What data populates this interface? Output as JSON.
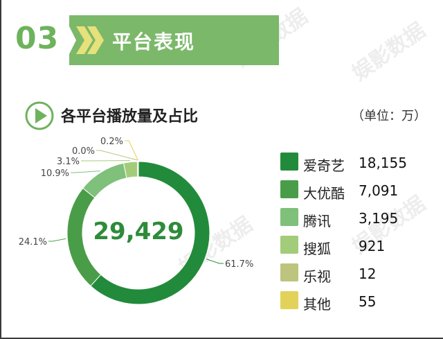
{
  "header": {
    "section_number": "03",
    "section_title": "平台表现"
  },
  "chart_title": "各平台播放量及占比",
  "unit_label": "（单位：万）",
  "center_total": "29,429",
  "watermark": "娱影数据",
  "chart_data": {
    "type": "pie",
    "style": "donut",
    "title": "各平台播放量及占比",
    "unit": "万",
    "total": 29429,
    "categories": [
      "爱奇艺",
      "大优酷",
      "腾讯",
      "搜狐",
      "乐视",
      "其他"
    ],
    "values": [
      18155,
      7091,
      3195,
      921,
      12,
      55
    ],
    "percent_labels": [
      "61.7%",
      "24.1%",
      "10.9%",
      "3.1%",
      "0.0%",
      "0.2%"
    ],
    "colors": [
      "#228b3b",
      "#4a9d48",
      "#7fc07a",
      "#a3cc7a",
      "#bdc47e",
      "#e3d25a"
    ]
  },
  "legend": [
    {
      "name": "爱奇艺",
      "value": "18,155"
    },
    {
      "name": "大优酷",
      "value": "7,091"
    },
    {
      "name": "腾讯",
      "value": "3,195"
    },
    {
      "name": "搜狐",
      "value": "921"
    },
    {
      "name": "乐视",
      "value": "12"
    },
    {
      "name": "其他",
      "value": "55"
    }
  ]
}
